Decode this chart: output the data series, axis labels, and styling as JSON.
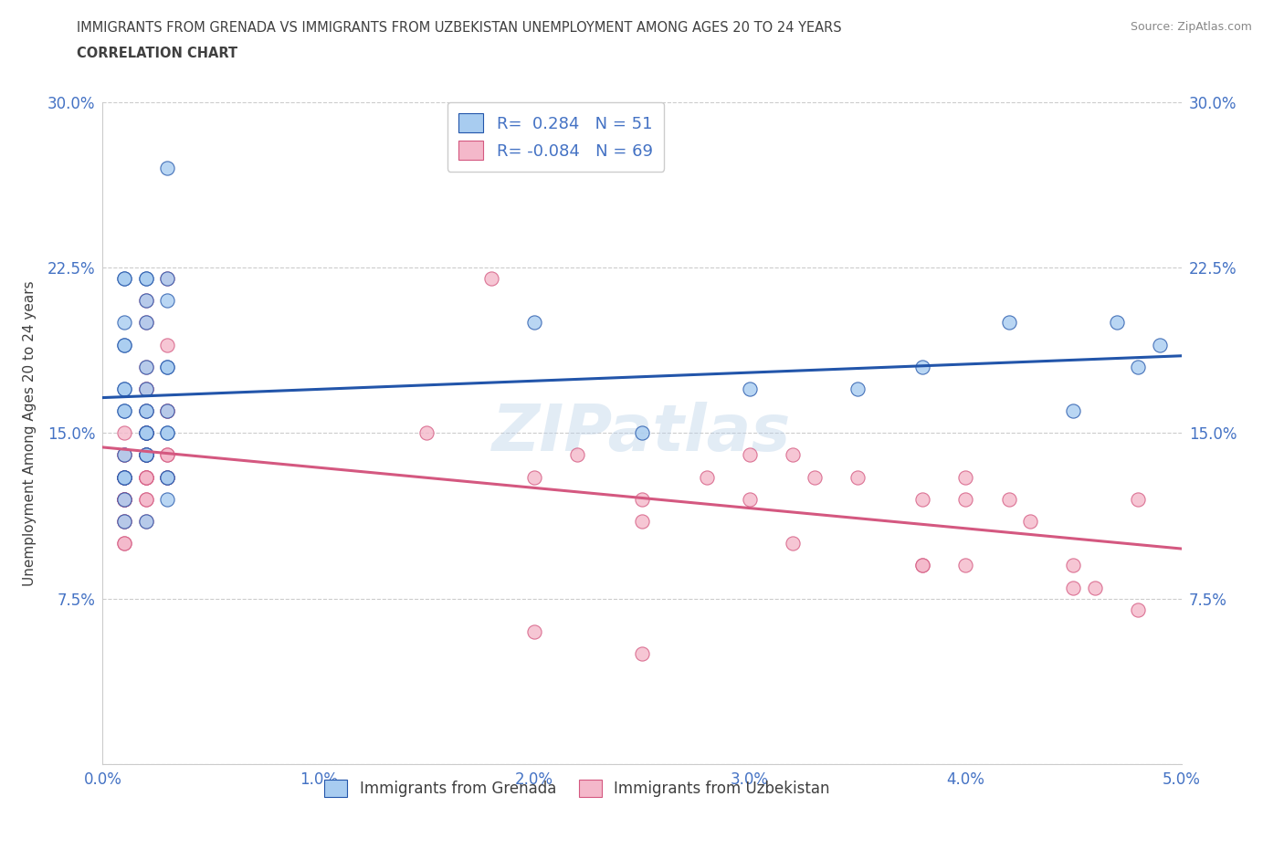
{
  "title_line1": "IMMIGRANTS FROM GRENADA VS IMMIGRANTS FROM UZBEKISTAN UNEMPLOYMENT AMONG AGES 20 TO 24 YEARS",
  "title_line2": "CORRELATION CHART",
  "source_text": "Source: ZipAtlas.com",
  "ylabel": "Unemployment Among Ages 20 to 24 years",
  "xlim": [
    0.0,
    0.05
  ],
  "ylim": [
    0.0,
    0.3
  ],
  "xticks": [
    0.0,
    0.01,
    0.02,
    0.03,
    0.04,
    0.05
  ],
  "yticks": [
    0.0,
    0.075,
    0.15,
    0.225,
    0.3
  ],
  "xtick_labels": [
    "0.0%",
    "1.0%",
    "2.0%",
    "3.0%",
    "4.0%",
    "5.0%"
  ],
  "ytick_labels": [
    "",
    "7.5%",
    "15.0%",
    "22.5%",
    "30.0%"
  ],
  "legend_label1": "Immigrants from Grenada",
  "legend_label2": "Immigrants from Uzbekistan",
  "R1": 0.284,
  "N1": 51,
  "R2": -0.084,
  "N2": 69,
  "color1": "#A8CCF0",
  "color2": "#F4B8CA",
  "line_color1": "#2255AA",
  "line_color2": "#D45880",
  "text_color": "#4472C4",
  "title_color": "#404040",
  "grenada_x": [
    0.001,
    0.001,
    0.002,
    0.001,
    0.002,
    0.001,
    0.003,
    0.002,
    0.001,
    0.002,
    0.002,
    0.003,
    0.002,
    0.001,
    0.003,
    0.002,
    0.001,
    0.002,
    0.001,
    0.003,
    0.002,
    0.003,
    0.003,
    0.001,
    0.002,
    0.001,
    0.002,
    0.003,
    0.001,
    0.002,
    0.003,
    0.001,
    0.002,
    0.001,
    0.003,
    0.002,
    0.001,
    0.003,
    0.002,
    0.001,
    0.003,
    0.025,
    0.02,
    0.03,
    0.035,
    0.038,
    0.042,
    0.045,
    0.047,
    0.048,
    0.049
  ],
  "grenada_y": [
    0.2,
    0.19,
    0.18,
    0.14,
    0.17,
    0.16,
    0.15,
    0.21,
    0.13,
    0.15,
    0.22,
    0.18,
    0.2,
    0.19,
    0.16,
    0.14,
    0.22,
    0.15,
    0.17,
    0.13,
    0.16,
    0.22,
    0.21,
    0.13,
    0.14,
    0.12,
    0.15,
    0.13,
    0.11,
    0.16,
    0.15,
    0.17,
    0.14,
    0.16,
    0.27,
    0.22,
    0.22,
    0.12,
    0.11,
    0.13,
    0.18,
    0.15,
    0.2,
    0.17,
    0.17,
    0.18,
    0.2,
    0.16,
    0.2,
    0.18,
    0.19
  ],
  "uzbekistan_x": [
    0.001,
    0.001,
    0.002,
    0.001,
    0.002,
    0.001,
    0.002,
    0.002,
    0.001,
    0.002,
    0.001,
    0.002,
    0.003,
    0.001,
    0.002,
    0.001,
    0.002,
    0.003,
    0.001,
    0.002,
    0.001,
    0.002,
    0.001,
    0.002,
    0.003,
    0.001,
    0.002,
    0.001,
    0.002,
    0.003,
    0.001,
    0.002,
    0.003,
    0.001,
    0.002,
    0.002,
    0.003,
    0.002,
    0.003,
    0.002,
    0.003,
    0.015,
    0.018,
    0.02,
    0.022,
    0.025,
    0.025,
    0.028,
    0.03,
    0.032,
    0.033,
    0.035,
    0.038,
    0.038,
    0.04,
    0.042,
    0.043,
    0.045,
    0.046,
    0.048,
    0.02,
    0.025,
    0.03,
    0.032,
    0.038,
    0.04,
    0.04,
    0.045,
    0.048
  ],
  "uzbekistan_y": [
    0.13,
    0.12,
    0.14,
    0.11,
    0.13,
    0.12,
    0.15,
    0.13,
    0.1,
    0.14,
    0.12,
    0.17,
    0.16,
    0.14,
    0.18,
    0.13,
    0.16,
    0.19,
    0.15,
    0.17,
    0.14,
    0.2,
    0.13,
    0.15,
    0.22,
    0.12,
    0.21,
    0.11,
    0.13,
    0.14,
    0.12,
    0.14,
    0.13,
    0.1,
    0.12,
    0.11,
    0.13,
    0.12,
    0.14,
    0.13,
    0.16,
    0.15,
    0.22,
    0.13,
    0.14,
    0.12,
    0.11,
    0.13,
    0.12,
    0.14,
    0.13,
    0.13,
    0.12,
    0.09,
    0.12,
    0.12,
    0.11,
    0.08,
    0.08,
    0.12,
    0.06,
    0.05,
    0.14,
    0.1,
    0.09,
    0.09,
    0.13,
    0.09,
    0.07
  ]
}
